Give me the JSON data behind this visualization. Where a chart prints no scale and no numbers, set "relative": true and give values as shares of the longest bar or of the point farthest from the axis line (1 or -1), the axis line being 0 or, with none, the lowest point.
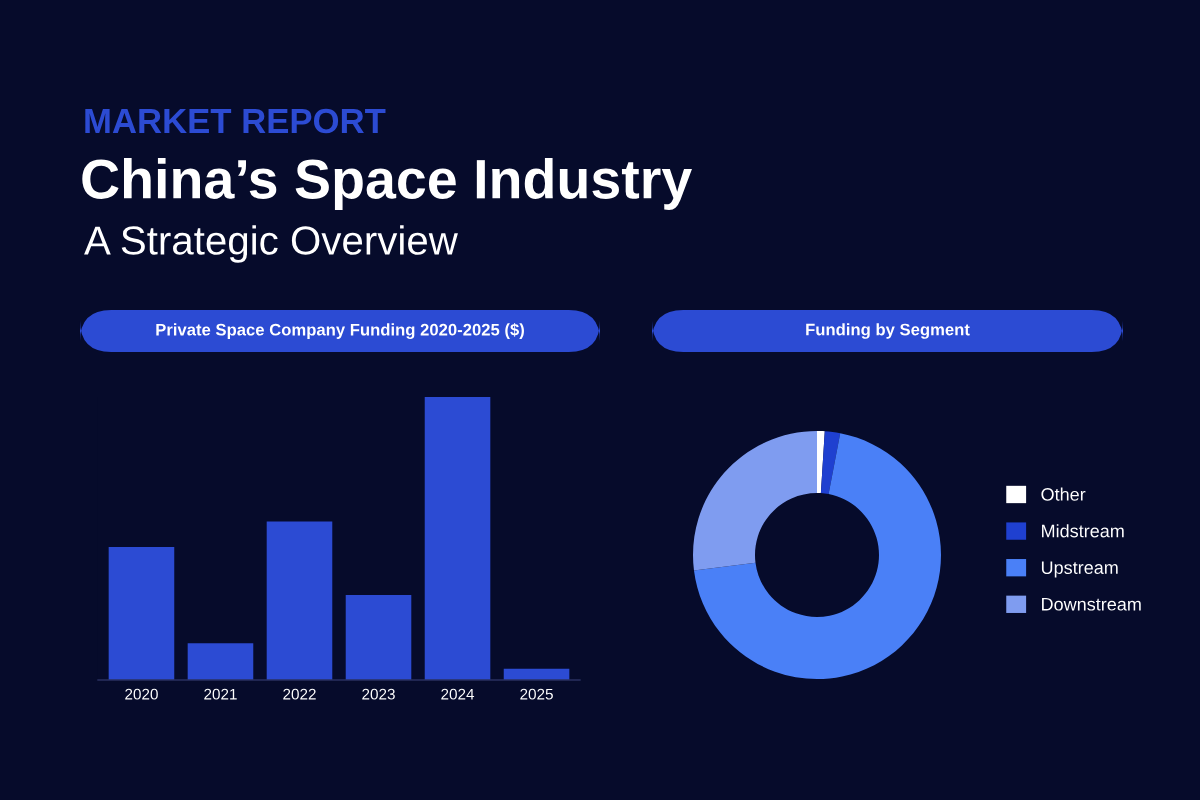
{
  "chart_data": [
    {
      "type": "bar",
      "title": "Private Space Company Funding 2020-2025 ($)",
      "annotations": [
        "MARKET REPORT",
        "China’s Space Industry",
        "A Strategic Overview"
      ],
      "relative": true,
      "categories": [
        "2020",
        "2021",
        "2022",
        "2023",
        "2024",
        "2025"
      ],
      "values": [
        0.47,
        0.13,
        0.56,
        0.3,
        1,
        0.04
      ],
      "color": "#2c4bd3",
      "grid": false,
      "legend": false
    },
    {
      "type": "donut",
      "title": "Funding by Segment",
      "categories": [
        "Other",
        "Midstream",
        "Upstream",
        "Downstream"
      ],
      "values": [
        1,
        2,
        70,
        27
      ],
      "colors": [
        "#ffffff",
        "#1f40d0",
        "#4a80f7",
        "#7f9cf0"
      ],
      "legend": "right"
    }
  ]
}
